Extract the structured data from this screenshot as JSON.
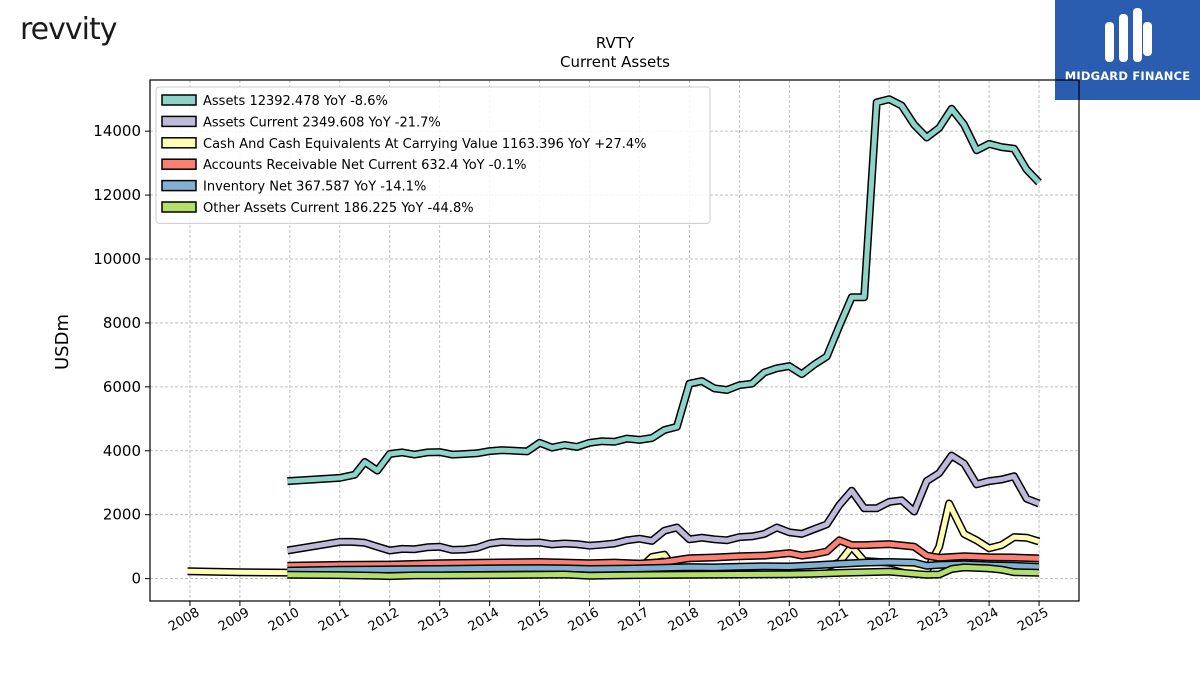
{
  "header": {
    "company_logo_text": "revvity",
    "brand_name": "MIDGARD FINANCE"
  },
  "chart_data": {
    "type": "line",
    "title": "RVTY",
    "subtitle": "Current  Assets",
    "ylabel": "USDm",
    "xlabel": "",
    "ylim": [
      -700,
      15600
    ],
    "xlim": [
      2007.2,
      2025.8
    ],
    "grid": true,
    "legend_position": "top-left",
    "x_ticks": [
      2008,
      2009,
      2010,
      2011,
      2012,
      2013,
      2014,
      2015,
      2016,
      2017,
      2018,
      2019,
      2020,
      2021,
      2022,
      2023,
      2024,
      2025
    ],
    "y_ticks": [
      0,
      2000,
      4000,
      6000,
      8000,
      10000,
      12000,
      14000
    ],
    "series": [
      {
        "name": "Assets",
        "legend_label": "Assets  12392.478 YoY -8.6%",
        "color": "#8dd3c7",
        "points": [
          [
            2009.95,
            3050
          ],
          [
            2011.0,
            3150
          ],
          [
            2011.3,
            3250
          ],
          [
            2011.5,
            3650
          ],
          [
            2011.75,
            3380
          ],
          [
            2012.0,
            3900
          ],
          [
            2012.25,
            3950
          ],
          [
            2012.5,
            3880
          ],
          [
            2012.75,
            3950
          ],
          [
            2013.0,
            3960
          ],
          [
            2013.25,
            3880
          ],
          [
            2013.5,
            3900
          ],
          [
            2013.75,
            3920
          ],
          [
            2014.0,
            3990
          ],
          [
            2014.25,
            4020
          ],
          [
            2014.5,
            4000
          ],
          [
            2014.75,
            3980
          ],
          [
            2015.0,
            4250
          ],
          [
            2015.25,
            4100
          ],
          [
            2015.5,
            4180
          ],
          [
            2015.75,
            4120
          ],
          [
            2016.0,
            4250
          ],
          [
            2016.25,
            4300
          ],
          [
            2016.5,
            4280
          ],
          [
            2016.75,
            4380
          ],
          [
            2017.0,
            4340
          ],
          [
            2017.25,
            4400
          ],
          [
            2017.5,
            4650
          ],
          [
            2017.75,
            4750
          ],
          [
            2018.0,
            6100
          ],
          [
            2018.25,
            6180
          ],
          [
            2018.5,
            5950
          ],
          [
            2018.75,
            5900
          ],
          [
            2019.0,
            6050
          ],
          [
            2019.25,
            6100
          ],
          [
            2019.5,
            6450
          ],
          [
            2019.75,
            6580
          ],
          [
            2020.0,
            6650
          ],
          [
            2020.25,
            6400
          ],
          [
            2020.5,
            6700
          ],
          [
            2020.75,
            6950
          ],
          [
            2021.0,
            7900
          ],
          [
            2021.25,
            8800
          ],
          [
            2021.5,
            8800
          ],
          [
            2021.75,
            14900
          ],
          [
            2022.0,
            15000
          ],
          [
            2022.25,
            14800
          ],
          [
            2022.5,
            14200
          ],
          [
            2022.75,
            13800
          ],
          [
            2023.0,
            14100
          ],
          [
            2023.25,
            14700
          ],
          [
            2023.5,
            14200
          ],
          [
            2023.75,
            13400
          ],
          [
            2024.0,
            13600
          ],
          [
            2024.25,
            13500
          ],
          [
            2024.5,
            13450
          ],
          [
            2024.75,
            12800
          ],
          [
            2025.0,
            12392
          ]
        ]
      },
      {
        "name": "Assets Current",
        "legend_label": "Assets Current  2349.608 YoY -21.7%",
        "color": "#bebada",
        "points": [
          [
            2009.95,
            880
          ],
          [
            2011.0,
            1150
          ],
          [
            2011.25,
            1150
          ],
          [
            2011.5,
            1120
          ],
          [
            2011.75,
            1000
          ],
          [
            2012.0,
            880
          ],
          [
            2012.25,
            930
          ],
          [
            2012.5,
            920
          ],
          [
            2012.75,
            980
          ],
          [
            2013.0,
            1000
          ],
          [
            2013.25,
            900
          ],
          [
            2013.5,
            910
          ],
          [
            2013.75,
            960
          ],
          [
            2014.0,
            1100
          ],
          [
            2014.25,
            1150
          ],
          [
            2014.5,
            1130
          ],
          [
            2014.75,
            1120
          ],
          [
            2015.0,
            1130
          ],
          [
            2015.25,
            1070
          ],
          [
            2015.5,
            1100
          ],
          [
            2015.75,
            1080
          ],
          [
            2016.0,
            1030
          ],
          [
            2016.25,
            1060
          ],
          [
            2016.5,
            1100
          ],
          [
            2016.75,
            1200
          ],
          [
            2017.0,
            1250
          ],
          [
            2017.25,
            1180
          ],
          [
            2017.5,
            1500
          ],
          [
            2017.75,
            1600
          ],
          [
            2018.0,
            1230
          ],
          [
            2018.25,
            1280
          ],
          [
            2018.5,
            1230
          ],
          [
            2018.75,
            1200
          ],
          [
            2019.0,
            1300
          ],
          [
            2019.25,
            1320
          ],
          [
            2019.5,
            1400
          ],
          [
            2019.75,
            1600
          ],
          [
            2020.0,
            1450
          ],
          [
            2020.25,
            1400
          ],
          [
            2020.5,
            1550
          ],
          [
            2020.75,
            1700
          ],
          [
            2021.0,
            2300
          ],
          [
            2021.25,
            2750
          ],
          [
            2021.5,
            2200
          ],
          [
            2021.75,
            2200
          ],
          [
            2022.0,
            2400
          ],
          [
            2022.25,
            2450
          ],
          [
            2022.5,
            2100
          ],
          [
            2022.75,
            3050
          ],
          [
            2023.0,
            3300
          ],
          [
            2023.25,
            3850
          ],
          [
            2023.5,
            3600
          ],
          [
            2023.75,
            2950
          ],
          [
            2024.0,
            3050
          ],
          [
            2024.25,
            3100
          ],
          [
            2024.5,
            3200
          ],
          [
            2024.75,
            2500
          ],
          [
            2025.0,
            2349
          ]
        ]
      },
      {
        "name": "Cash And Cash Equivalents At Carrying Value",
        "legend_label": "Cash And Cash Equivalents At Carrying Value  1163.396 YoY +27.4%",
        "color": "#ffffb3",
        "points": [
          [
            2007.95,
            230
          ],
          [
            2009.0,
            200
          ],
          [
            2009.95,
            190
          ],
          [
            2011.0,
            210
          ],
          [
            2012.0,
            200
          ],
          [
            2013.0,
            230
          ],
          [
            2014.0,
            250
          ],
          [
            2015.0,
            250
          ],
          [
            2016.0,
            260
          ],
          [
            2017.0,
            300
          ],
          [
            2017.25,
            680
          ],
          [
            2017.5,
            750
          ],
          [
            2017.75,
            200
          ],
          [
            2018.0,
            210
          ],
          [
            2019.0,
            200
          ],
          [
            2019.5,
            240
          ],
          [
            2020.0,
            300
          ],
          [
            2020.5,
            250
          ],
          [
            2021.0,
            500
          ],
          [
            2021.25,
            1000
          ],
          [
            2021.5,
            550
          ],
          [
            2022.0,
            500
          ],
          [
            2022.5,
            300
          ],
          [
            2022.75,
            250
          ],
          [
            2023.0,
            1000
          ],
          [
            2023.2,
            2350
          ],
          [
            2023.5,
            1400
          ],
          [
            2023.75,
            1200
          ],
          [
            2024.0,
            950
          ],
          [
            2024.25,
            1050
          ],
          [
            2024.5,
            1300
          ],
          [
            2024.75,
            1280
          ],
          [
            2025.0,
            1163
          ]
        ]
      },
      {
        "name": "Accounts Receivable Net Current",
        "legend_label": "Accounts Receivable Net Current  632.4 YoY -0.1%",
        "color": "#fb8072",
        "points": [
          [
            2009.95,
            400
          ],
          [
            2011.0,
            430
          ],
          [
            2012.0,
            440
          ],
          [
            2013.0,
            480
          ],
          [
            2014.0,
            500
          ],
          [
            2015.0,
            520
          ],
          [
            2015.5,
            500
          ],
          [
            2016.0,
            480
          ],
          [
            2016.5,
            500
          ],
          [
            2017.0,
            470
          ],
          [
            2017.5,
            520
          ],
          [
            2018.0,
            640
          ],
          [
            2018.5,
            660
          ],
          [
            2019.0,
            700
          ],
          [
            2019.5,
            720
          ],
          [
            2020.0,
            800
          ],
          [
            2020.25,
            720
          ],
          [
            2020.5,
            770
          ],
          [
            2020.75,
            850
          ],
          [
            2021.0,
            1200
          ],
          [
            2021.25,
            1050
          ],
          [
            2021.5,
            1050
          ],
          [
            2022.0,
            1080
          ],
          [
            2022.5,
            1000
          ],
          [
            2022.75,
            720
          ],
          [
            2023.0,
            650
          ],
          [
            2023.5,
            700
          ],
          [
            2024.0,
            670
          ],
          [
            2024.5,
            660
          ],
          [
            2025.0,
            632
          ]
        ]
      },
      {
        "name": "Inventory Net",
        "legend_label": "Inventory Net  367.587 YoY -14.1%",
        "color": "#80b1d3",
        "points": [
          [
            2009.95,
            250
          ],
          [
            2011.0,
            280
          ],
          [
            2012.0,
            290
          ],
          [
            2013.0,
            300
          ],
          [
            2014.0,
            320
          ],
          [
            2015.0,
            330
          ],
          [
            2015.5,
            320
          ],
          [
            2016.0,
            300
          ],
          [
            2016.5,
            310
          ],
          [
            2017.0,
            320
          ],
          [
            2017.5,
            340
          ],
          [
            2018.0,
            360
          ],
          [
            2018.5,
            350
          ],
          [
            2019.0,
            370
          ],
          [
            2019.5,
            390
          ],
          [
            2020.0,
            380
          ],
          [
            2020.5,
            420
          ],
          [
            2021.0,
            460
          ],
          [
            2021.5,
            500
          ],
          [
            2022.0,
            520
          ],
          [
            2022.5,
            500
          ],
          [
            2022.75,
            400
          ],
          [
            2023.0,
            430
          ],
          [
            2023.5,
            450
          ],
          [
            2024.0,
            420
          ],
          [
            2024.5,
            400
          ],
          [
            2025.0,
            367
          ]
        ]
      },
      {
        "name": "Other Assets Current",
        "legend_label": "Other Assets Current  186.225 YoY -44.8%",
        "color": "#b3de69",
        "points": [
          [
            2009.95,
            120
          ],
          [
            2011.0,
            110
          ],
          [
            2011.75,
            90
          ],
          [
            2012.0,
            80
          ],
          [
            2012.5,
            100
          ],
          [
            2013.0,
            100
          ],
          [
            2014.0,
            110
          ],
          [
            2015.0,
            120
          ],
          [
            2015.5,
            130
          ],
          [
            2016.0,
            90
          ],
          [
            2016.5,
            100
          ],
          [
            2017.0,
            110
          ],
          [
            2018.0,
            120
          ],
          [
            2019.0,
            130
          ],
          [
            2020.0,
            140
          ],
          [
            2020.5,
            150
          ],
          [
            2021.0,
            180
          ],
          [
            2021.5,
            200
          ],
          [
            2022.0,
            220
          ],
          [
            2022.5,
            150
          ],
          [
            2022.75,
            120
          ],
          [
            2023.0,
            130
          ],
          [
            2023.25,
            300
          ],
          [
            2023.5,
            350
          ],
          [
            2024.0,
            320
          ],
          [
            2024.25,
            280
          ],
          [
            2024.5,
            200
          ],
          [
            2025.0,
            186
          ]
        ]
      }
    ]
  }
}
